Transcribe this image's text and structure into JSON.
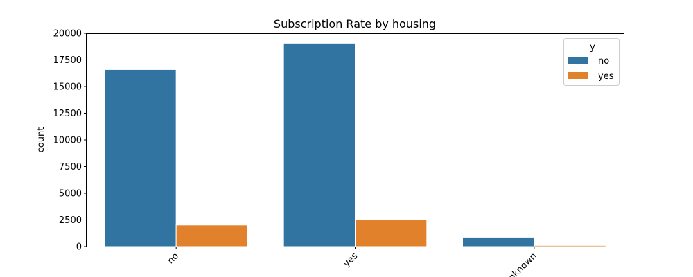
{
  "chart_data": {
    "type": "bar",
    "title": "Subscription Rate by housing",
    "xlabel": "",
    "ylabel": "count",
    "categories": [
      "no",
      "yes",
      "unknown"
    ],
    "series": [
      {
        "name": "no",
        "color": "#3274a1",
        "values": [
          16596,
          19069,
          883
        ]
      },
      {
        "name": "yes",
        "color": "#e1812c",
        "values": [
          2026,
          2507,
          107
        ]
      }
    ],
    "ylim": [
      0,
      20000
    ],
    "yticks": [
      "0",
      "2500",
      "5000",
      "7500",
      "10000",
      "12500",
      "15000",
      "17500",
      "20000"
    ],
    "legend": {
      "title": "y",
      "placement": "top-right"
    },
    "grid": false
  }
}
